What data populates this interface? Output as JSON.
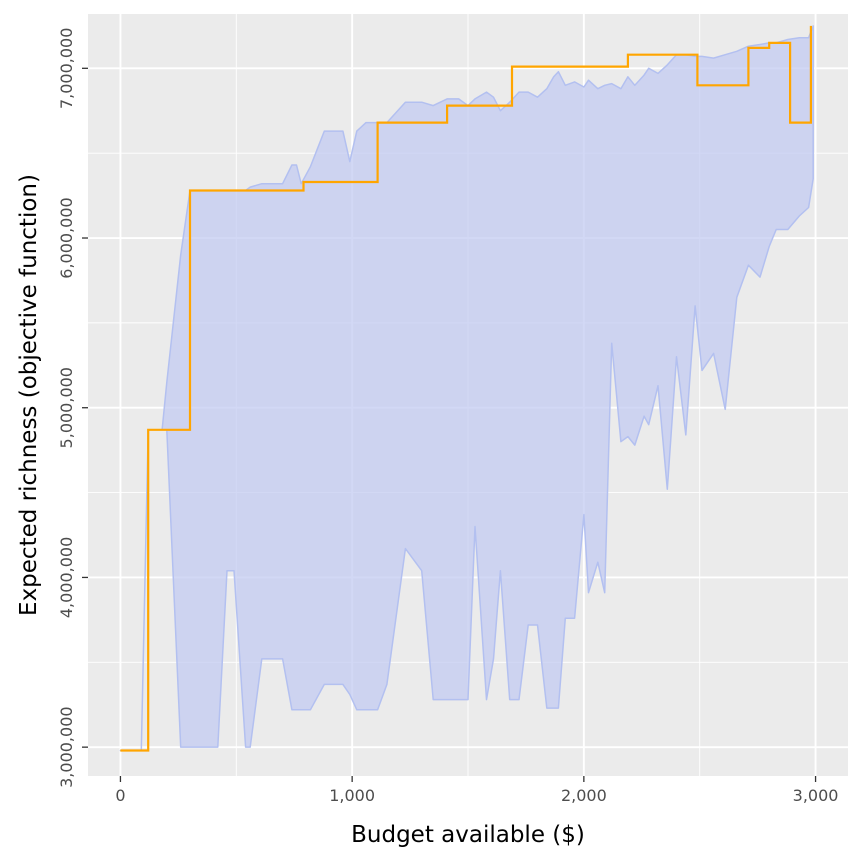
{
  "chart_data": {
    "type": "line",
    "title": "",
    "xlabel": "Budget available ($)",
    "ylabel": "Expected richness (objective function)",
    "xlim": [
      -140,
      3140
    ],
    "ylim": [
      2830000,
      7320000
    ],
    "x_ticks": [
      0,
      1000,
      2000,
      3000
    ],
    "x_tick_labels": [
      "0",
      "1,000",
      "2,000",
      "3,000"
    ],
    "y_ticks": [
      3000000,
      4000000,
      5000000,
      6000000,
      7000000
    ],
    "y_tick_labels": [
      "3,000,000",
      "4,000,000",
      "5,000,000",
      "6,000,000",
      "7,000,000"
    ],
    "grid": true,
    "colors": {
      "panel": "#ebebeb",
      "grid": "#ffffff",
      "ribbon_fill": "#c3cbf2",
      "ribbon_stroke": "#b3c0f0",
      "line": "#ffa500",
      "tick_mark": "#333333"
    },
    "series": [
      {
        "type": "step",
        "x": [
          0,
          120,
          120,
          300,
          300,
          790,
          790,
          1110,
          1110,
          1410,
          1410,
          1690,
          1690,
          2190,
          2190,
          2490,
          2490,
          2710,
          2710,
          2800,
          2800,
          2890,
          2890,
          2980,
          2980
        ],
        "y": [
          2980000,
          2980000,
          4870000,
          4870000,
          6280000,
          6280000,
          6330000,
          6330000,
          6680000,
          6680000,
          6780000,
          6780000,
          7010000,
          7010000,
          7080000,
          7080000,
          6900000,
          6900000,
          7120000,
          7120000,
          7150000,
          7150000,
          6680000,
          6680000,
          7250000
        ]
      },
      {
        "type": "ribbon",
        "x": [
          0,
          90,
          120,
          180,
          200,
          260,
          300,
          380,
          420,
          460,
          490,
          540,
          560,
          610,
          640,
          700,
          740,
          760,
          780,
          820,
          880,
          910,
          960,
          990,
          1020,
          1060,
          1110,
          1150,
          1230,
          1300,
          1350,
          1410,
          1460,
          1500,
          1530,
          1580,
          1610,
          1640,
          1680,
          1720,
          1760,
          1800,
          1840,
          1870,
          1890,
          1920,
          1960,
          2000,
          2020,
          2060,
          2090,
          2120,
          2160,
          2190,
          2220,
          2260,
          2280,
          2320,
          2360,
          2400,
          2440,
          2480,
          2510,
          2560,
          2610,
          2660,
          2710,
          2760,
          2800,
          2830,
          2880,
          2930,
          2970,
          2990
        ],
        "upper": [
          2980000,
          2980000,
          4870000,
          4870000,
          5150000,
          5900000,
          6280000,
          6280000,
          6280000,
          6280000,
          6280000,
          6280000,
          6300000,
          6320000,
          6320000,
          6320000,
          6430000,
          6430000,
          6320000,
          6420000,
          6630000,
          6630000,
          6630000,
          6450000,
          6630000,
          6680000,
          6680000,
          6680000,
          6800000,
          6800000,
          6780000,
          6820000,
          6820000,
          6780000,
          6820000,
          6860000,
          6830000,
          6750000,
          6800000,
          6860000,
          6860000,
          6830000,
          6880000,
          6950000,
          6980000,
          6900000,
          6920000,
          6890000,
          6930000,
          6880000,
          6900000,
          6910000,
          6880000,
          6950000,
          6900000,
          6960000,
          7000000,
          6970000,
          7020000,
          7080000,
          7080000,
          7070000,
          7070000,
          7060000,
          7080000,
          7100000,
          7130000,
          7140000,
          7150000,
          7150000,
          7170000,
          7180000,
          7180000,
          7250000
        ],
        "lower": [
          2980000,
          2980000,
          4870000,
          4870000,
          4870000,
          3000000,
          3000000,
          3000000,
          3000000,
          4040000,
          4040000,
          3000000,
          3000000,
          3520000,
          3520000,
          3520000,
          3220000,
          3220000,
          3220000,
          3220000,
          3370000,
          3370000,
          3370000,
          3310000,
          3220000,
          3220000,
          3220000,
          3370000,
          4170000,
          4040000,
          3280000,
          3280000,
          3280000,
          3280000,
          4300000,
          3280000,
          3520000,
          4040000,
          3280000,
          3280000,
          3720000,
          3720000,
          3230000,
          3230000,
          3230000,
          3760000,
          3760000,
          4370000,
          3910000,
          4090000,
          3910000,
          5380000,
          4800000,
          4830000,
          4780000,
          4950000,
          4900000,
          5130000,
          4520000,
          5300000,
          4840000,
          5600000,
          5220000,
          5320000,
          4990000,
          5650000,
          5840000,
          5770000,
          5950000,
          6050000,
          6050000,
          6130000,
          6180000,
          6350000
        ]
      }
    ]
  }
}
